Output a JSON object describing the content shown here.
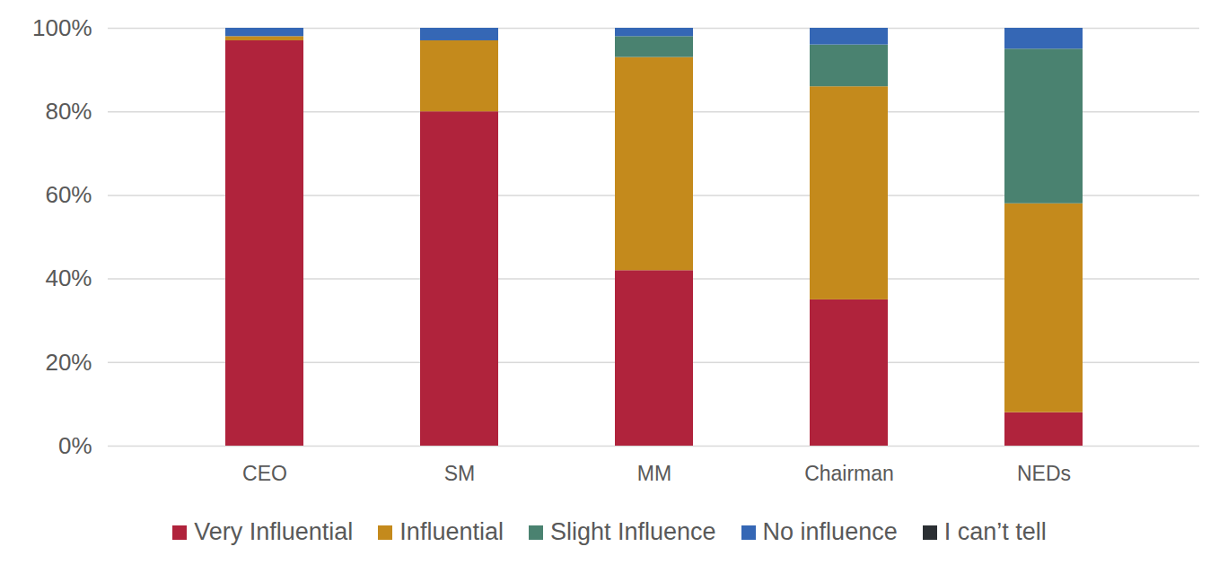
{
  "chart_data": {
    "type": "bar",
    "stacked": true,
    "grid": true,
    "legend": "bottom",
    "categories": [
      "CEO",
      "SM",
      "MM",
      "Chairman",
      "NEDs"
    ],
    "series": [
      {
        "name": "Very Influential",
        "color": "#b0233c",
        "values": [
          97,
          80,
          42,
          35,
          8
        ]
      },
      {
        "name": "Influential",
        "color": "#c48a1c",
        "values": [
          1,
          17,
          51,
          51,
          50
        ]
      },
      {
        "name": "Slight Influence",
        "color": "#4a8270",
        "values": [
          0,
          0,
          5,
          10,
          37
        ]
      },
      {
        "name": "No influence",
        "color": "#3567b5",
        "values": [
          2,
          3,
          2,
          4,
          5
        ]
      },
      {
        "name": "I can’t tell",
        "color": "#2b2f33",
        "values": [
          0,
          0,
          0,
          0,
          0
        ]
      }
    ],
    "ylim": [
      0,
      100
    ],
    "yticks": [
      {
        "value": 0,
        "label": "0%"
      },
      {
        "value": 20,
        "label": "20%"
      },
      {
        "value": 40,
        "label": "40%"
      },
      {
        "value": 60,
        "label": "60%"
      },
      {
        "value": 80,
        "label": "80%"
      },
      {
        "value": 100,
        "label": "100%"
      }
    ]
  }
}
